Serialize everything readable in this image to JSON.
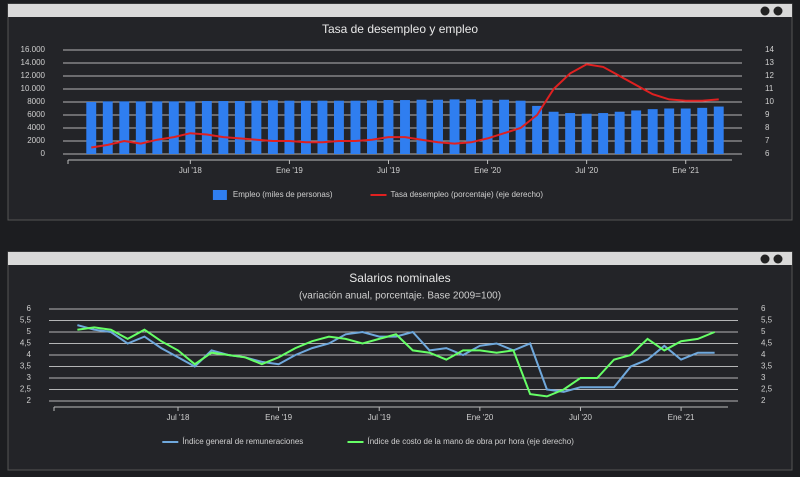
{
  "chart_data": [
    {
      "type": "combo",
      "title": "Tasa de desempleo y empleo",
      "categories": [
        null,
        null,
        null,
        null,
        null,
        null,
        "Jul '18",
        null,
        null,
        null,
        null,
        null,
        "Ene '19",
        null,
        null,
        null,
        null,
        null,
        "Jul '19",
        null,
        null,
        null,
        null,
        null,
        "Ene '20",
        null,
        null,
        null,
        null,
        null,
        "Jul '20",
        null,
        null,
        null,
        null,
        null,
        "Ene '21",
        null,
        null
      ],
      "series": [
        {
          "name": "Empleo (miles de personas)",
          "type": "bar",
          "color": "#2f7ef0",
          "values": [
            8000,
            8100,
            8100,
            8100,
            8100,
            8100,
            8100,
            8150,
            8150,
            8150,
            8200,
            8250,
            8200,
            8200,
            8200,
            8200,
            8200,
            8250,
            8300,
            8300,
            8350,
            8350,
            8400,
            8400,
            8350,
            8350,
            8200,
            7400,
            6500,
            6300,
            6200,
            6300,
            6500,
            6700,
            6900,
            7000,
            7000,
            7100,
            7300
          ]
        },
        {
          "name": "Tasa desempleo (porcentaje) (eje derecho)",
          "type": "line",
          "axis": "y2",
          "color": "#e02020",
          "values": [
            6.5,
            6.7,
            7.0,
            6.8,
            7.1,
            7.3,
            7.6,
            7.5,
            7.3,
            7.2,
            7.1,
            7.0,
            7.0,
            6.9,
            6.9,
            7.0,
            7.0,
            7.1,
            7.3,
            7.3,
            7.1,
            6.9,
            6.8,
            6.9,
            7.2,
            7.6,
            8.0,
            9.0,
            11.0,
            12.2,
            12.9,
            12.7,
            12.0,
            11.3,
            10.6,
            10.2,
            10.1,
            10.1,
            10.2
          ]
        }
      ],
      "ylim": [
        0,
        16000
      ],
      "yticks": [
        0,
        {
          "value": 2000,
          "label": "2000"
        },
        {
          "value": 4000,
          "label": "4000"
        },
        {
          "value": 6000,
          "label": "6000"
        },
        {
          "value": 8000,
          "label": "8000"
        },
        {
          "value": 10000,
          "label": "10.000"
        },
        {
          "value": 12000,
          "label": "12.000"
        },
        {
          "value": 14000,
          "label": "14.000"
        },
        {
          "value": 16000,
          "label": "16.000"
        }
      ],
      "y2lim": [
        6,
        14
      ],
      "y2ticks": [
        6,
        7,
        8,
        9,
        10,
        11,
        12,
        13,
        14
      ],
      "grid": true
    },
    {
      "type": "line",
      "title": "Salarios nominales",
      "subtitle": "(variación anual, porcentaje. Base 2009=100)",
      "categories": [
        null,
        null,
        null,
        null,
        null,
        null,
        "Jul '18",
        null,
        null,
        null,
        null,
        null,
        "Ene '19",
        null,
        null,
        null,
        null,
        null,
        "Jul '19",
        null,
        null,
        null,
        null,
        null,
        "Ene '20",
        null,
        null,
        null,
        null,
        null,
        "Jul '20",
        null,
        null,
        null,
        null,
        null,
        "Ene '21",
        null,
        null
      ],
      "series": [
        {
          "name": "Índice general de remuneraciones",
          "type": "line",
          "color": "#6fa8dc",
          "values": [
            5.3,
            5.1,
            5.0,
            4.5,
            4.8,
            4.3,
            3.9,
            3.5,
            4.2,
            4.0,
            3.9,
            3.7,
            3.6,
            4.0,
            4.3,
            4.5,
            4.9,
            5.0,
            4.8,
            4.8,
            5.0,
            4.2,
            4.3,
            4.0,
            4.4,
            4.5,
            4.2,
            4.5,
            2.5,
            2.4,
            2.6,
            2.6,
            2.6,
            3.5,
            3.8,
            4.4,
            3.8,
            4.1,
            4.1
          ]
        },
        {
          "name": "Índice de costo de la mano de obra por hora (eje derecho)",
          "type": "line",
          "axis": "y2",
          "color": "#66ff66",
          "values": [
            5.1,
            5.2,
            5.1,
            4.7,
            5.1,
            4.6,
            4.2,
            3.6,
            4.1,
            4.0,
            3.9,
            3.6,
            3.9,
            4.3,
            4.6,
            4.8,
            4.7,
            4.5,
            4.7,
            4.9,
            4.2,
            4.1,
            3.8,
            4.2,
            4.2,
            4.1,
            4.2,
            2.3,
            2.2,
            2.5,
            3.0,
            3.0,
            3.8,
            4.0,
            4.7,
            4.2,
            4.6,
            4.7,
            5.0
          ]
        }
      ],
      "ylim": [
        2,
        6
      ],
      "yticks": [
        2,
        {
          "value": 2.5,
          "label": "2,5"
        },
        3,
        {
          "value": 3.5,
          "label": "3,5"
        },
        4,
        {
          "value": 4.5,
          "label": "4,5"
        },
        5,
        {
          "value": 5.5,
          "label": "5,5"
        },
        6
      ],
      "y2lim": [
        2,
        6
      ],
      "y2ticks": [
        2,
        {
          "value": 2.5,
          "label": "2,5"
        },
        3,
        {
          "value": 3.5,
          "label": "3,5"
        },
        4,
        {
          "value": 4.5,
          "label": "4,5"
        },
        5,
        {
          "value": 5.5,
          "label": "5,5"
        },
        6
      ],
      "grid": true
    }
  ]
}
